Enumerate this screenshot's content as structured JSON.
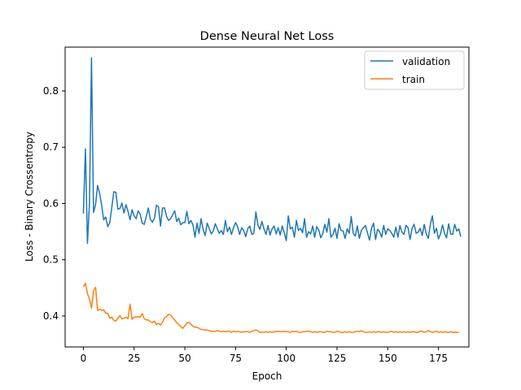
{
  "chart_data": {
    "type": "line",
    "title": "Dense Neural Net Loss",
    "xlabel": "Epoch",
    "ylabel": "Loss - Binary Crossentropy",
    "xlim": [
      -9,
      190
    ],
    "ylim": [
      0.345,
      0.878
    ],
    "xticks": [
      0,
      25,
      50,
      75,
      100,
      125,
      150,
      175
    ],
    "yticks": [
      0.4,
      0.5,
      0.6,
      0.7,
      0.8
    ],
    "ytick_labels": [
      "0.4",
      "0.5",
      "0.6",
      "0.7",
      "0.8"
    ],
    "grid": false,
    "legend_position": "top-right",
    "series": [
      {
        "name": "validation",
        "color": "#1f77b4",
        "y": [
          0.582,
          0.697,
          0.529,
          0.6,
          0.859,
          0.584,
          0.598,
          0.632,
          0.618,
          0.597,
          0.571,
          0.576,
          0.559,
          0.566,
          0.593,
          0.621,
          0.62,
          0.59,
          0.591,
          0.601,
          0.583,
          0.598,
          0.586,
          0.571,
          0.589,
          0.578,
          0.573,
          0.587,
          0.581,
          0.565,
          0.563,
          0.577,
          0.592,
          0.572,
          0.567,
          0.573,
          0.597,
          0.594,
          0.56,
          0.592,
          0.592,
          0.577,
          0.57,
          0.573,
          0.58,
          0.587,
          0.568,
          0.574,
          0.562,
          0.566,
          0.566,
          0.586,
          0.564,
          0.57,
          0.562,
          0.54,
          0.565,
          0.547,
          0.573,
          0.554,
          0.543,
          0.565,
          0.556,
          0.546,
          0.551,
          0.564,
          0.555,
          0.547,
          0.552,
          0.545,
          0.57,
          0.55,
          0.558,
          0.545,
          0.557,
          0.566,
          0.559,
          0.545,
          0.557,
          0.552,
          0.541,
          0.555,
          0.56,
          0.545,
          0.547,
          0.585,
          0.562,
          0.554,
          0.568,
          0.555,
          0.545,
          0.561,
          0.544,
          0.555,
          0.56,
          0.546,
          0.557,
          0.544,
          0.56,
          0.548,
          0.534,
          0.578,
          0.555,
          0.558,
          0.54,
          0.57,
          0.552,
          0.556,
          0.548,
          0.573,
          0.54,
          0.55,
          0.546,
          0.56,
          0.54,
          0.559,
          0.553,
          0.539,
          0.547,
          0.563,
          0.549,
          0.573,
          0.54,
          0.545,
          0.556,
          0.538,
          0.564,
          0.552,
          0.551,
          0.538,
          0.555,
          0.547,
          0.577,
          0.547,
          0.542,
          0.56,
          0.538,
          0.552,
          0.557,
          0.561,
          0.548,
          0.535,
          0.556,
          0.565,
          0.536,
          0.554,
          0.55,
          0.54,
          0.561,
          0.545,
          0.555,
          0.552,
          0.547,
          0.54,
          0.558,
          0.54,
          0.561,
          0.549,
          0.545,
          0.561,
          0.557,
          0.536,
          0.556,
          0.563,
          0.547,
          0.549,
          0.556,
          0.543,
          0.563,
          0.546,
          0.538,
          0.563,
          0.578,
          0.547,
          0.556,
          0.537,
          0.546,
          0.562,
          0.547,
          0.539,
          0.564,
          0.546,
          0.545,
          0.563,
          0.551,
          0.555,
          0.541
        ]
      },
      {
        "name": "train",
        "color": "#ff7f0e",
        "y": [
          0.452,
          0.458,
          0.44,
          0.43,
          0.414,
          0.445,
          0.451,
          0.41,
          0.412,
          0.41,
          0.411,
          0.405,
          0.405,
          0.396,
          0.398,
          0.392,
          0.391,
          0.396,
          0.401,
          0.395,
          0.396,
          0.398,
          0.395,
          0.421,
          0.394,
          0.398,
          0.398,
          0.399,
          0.398,
          0.404,
          0.395,
          0.393,
          0.393,
          0.39,
          0.388,
          0.391,
          0.385,
          0.387,
          0.384,
          0.389,
          0.397,
          0.399,
          0.403,
          0.401,
          0.397,
          0.393,
          0.388,
          0.385,
          0.381,
          0.378,
          0.383,
          0.387,
          0.389,
          0.385,
          0.382,
          0.38,
          0.38,
          0.378,
          0.376,
          0.376,
          0.375,
          0.375,
          0.374,
          0.373,
          0.373,
          0.373,
          0.374,
          0.373,
          0.372,
          0.373,
          0.372,
          0.373,
          0.373,
          0.371,
          0.373,
          0.372,
          0.372,
          0.372,
          0.371,
          0.372,
          0.372,
          0.372,
          0.371,
          0.373,
          0.374,
          0.375,
          0.374,
          0.371,
          0.371,
          0.371,
          0.372,
          0.371,
          0.372,
          0.371,
          0.372,
          0.372,
          0.373,
          0.372,
          0.372,
          0.373,
          0.372,
          0.372,
          0.371,
          0.373,
          0.372,
          0.373,
          0.371,
          0.371,
          0.372,
          0.372,
          0.373,
          0.373,
          0.372,
          0.371,
          0.372,
          0.371,
          0.372,
          0.372,
          0.371,
          0.371,
          0.373,
          0.372,
          0.372,
          0.371,
          0.371,
          0.373,
          0.372,
          0.371,
          0.371,
          0.372,
          0.371,
          0.372,
          0.371,
          0.371,
          0.372,
          0.373,
          0.372,
          0.374,
          0.372,
          0.371,
          0.371,
          0.372,
          0.371,
          0.372,
          0.371,
          0.372,
          0.372,
          0.371,
          0.372,
          0.371,
          0.371,
          0.372,
          0.373,
          0.371,
          0.372,
          0.371,
          0.372,
          0.371,
          0.372,
          0.371,
          0.372,
          0.371,
          0.372,
          0.372,
          0.371,
          0.371,
          0.373,
          0.373,
          0.371,
          0.372,
          0.374,
          0.372,
          0.371,
          0.372,
          0.373,
          0.371,
          0.372,
          0.371,
          0.372,
          0.371,
          0.371,
          0.372,
          0.371,
          0.371,
          0.371,
          0.371
        ]
      }
    ]
  }
}
